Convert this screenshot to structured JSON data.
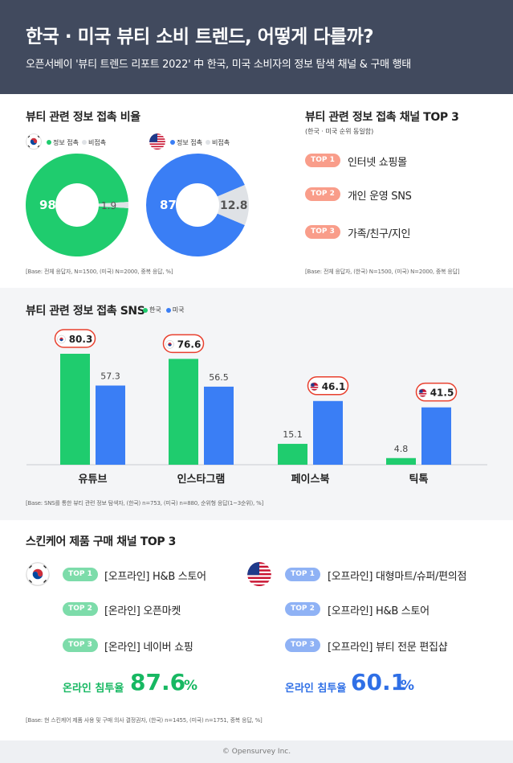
{
  "header": {
    "title": "한국 · 미국 뷰티 소비 트렌드, 어떻게 다를까?",
    "subtitle": "오픈서베이 '뷰티 트렌드 리포트 2022' 中 한국, 미국 소비자의 정보 탐색 채널 & 구매 행태"
  },
  "info_ratio": {
    "title": "뷰티 관련 정보 접촉 비율",
    "legend_contact": "정보 접촉",
    "legend_noncontact": "비접촉",
    "note": "[Base: 전체 응답자, N=1500, (미국) N=2000, 중복 응답, %]"
  },
  "channels_top3": {
    "title": "뷰티 관련 정보 접촉 채널 TOP 3",
    "subtitle": "(한국 · 미국 순위 동일함)",
    "items": [
      {
        "rank": "TOP 1",
        "label": "인터넷 쇼핑몰"
      },
      {
        "rank": "TOP 2",
        "label": "개인 운영 SNS"
      },
      {
        "rank": "TOP 3",
        "label": "가족/친구/지인"
      }
    ],
    "note": "[Base: 전체 응답자, (한국) N=1500, (미국) N=2000, 중복 응답]"
  },
  "sns": {
    "title": "뷰티 관련 정보 접촉 SNS",
    "legend_korea": "한국",
    "legend_usa": "미국",
    "note": "[Base: SNS를 통한 뷰티 관련 정보 탐색자, (한국) n=753, (미국) n=880, 순위형 응답(1~3순위), %]"
  },
  "purchase": {
    "title": "스킨케어 제품 구매 채널 TOP 3",
    "korea": [
      {
        "rank": "TOP 1",
        "label": "[오프라인] H&B 스토어"
      },
      {
        "rank": "TOP 2",
        "label": "[온라인] 오픈마켓"
      },
      {
        "rank": "TOP 3",
        "label": "[온라인] 네이버 쇼핑"
      }
    ],
    "usa": [
      {
        "rank": "TOP 1",
        "label": "[오프라인] 대형마트/슈퍼/편의점"
      },
      {
        "rank": "TOP 2",
        "label": "[오프라인] H&B 스토어"
      },
      {
        "rank": "TOP 3",
        "label": "[오프라인] 뷰티 전문 편집샵"
      }
    ],
    "online_label": "온라인 침투율",
    "korea_online": "87.6",
    "usa_online": "60.1",
    "pct": "%",
    "note": "[Base: 현 스킨케어 제품 사용 및 구매 의사 결정권자, (한국) n=1455, (미국) n=1751, 중복 응답, %]"
  },
  "footer": "© Opensurvey Inc.",
  "colors": {
    "korea": "#1fcc6e",
    "usa": "#3a7ef5",
    "noncontact": "#dfe2e6",
    "coral": "#f99d8a",
    "korea_pill": "#7ddcaa",
    "usa_pill": "#8fb2f5",
    "highlight": "#e8402e",
    "header": "#414a5e"
  },
  "chart_data": [
    {
      "type": "pie",
      "series": [
        {
          "name": "한국",
          "values": [
            98.1,
            1.9
          ]
        }
      ],
      "categories": [
        "정보 접촉",
        "비접촉"
      ]
    },
    {
      "type": "pie",
      "series": [
        {
          "name": "미국",
          "values": [
            87.2,
            12.8
          ]
        }
      ],
      "categories": [
        "정보 접촉",
        "비접촉"
      ]
    },
    {
      "type": "bar",
      "categories": [
        "유튜브",
        "인스타그램",
        "페이스북",
        "틱톡"
      ],
      "series": [
        {
          "name": "한국",
          "values": [
            80.3,
            76.6,
            15.1,
            4.8
          ]
        },
        {
          "name": "미국",
          "values": [
            57.3,
            56.5,
            46.1,
            41.5
          ]
        }
      ],
      "highlight": [
        "한국",
        "한국",
        "미국",
        "미국"
      ],
      "ylim": [
        0,
        100
      ]
    }
  ]
}
